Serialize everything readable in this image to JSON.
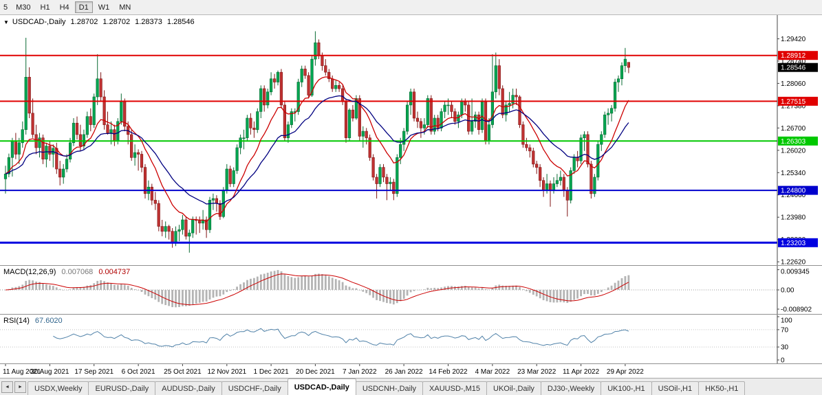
{
  "toolbar": {
    "timeframes": [
      "5",
      "M30",
      "H1",
      "H4",
      "D1",
      "W1",
      "MN"
    ],
    "active": "D1"
  },
  "chart": {
    "dropdown_icon": "▼",
    "symbol_label": "USDCAD-,Daily",
    "ohlc": {
      "open": "1.28702",
      "high": "1.28702",
      "low": "1.28373",
      "close": "1.28546"
    }
  },
  "macd": {
    "label": "MACD(12,26,9)",
    "main_value": "0.007068",
    "signal_value": "0.004737"
  },
  "rsi": {
    "label": "RSI(14)",
    "value": "67.6020"
  },
  "tab_nav": {
    "left": "◄",
    "right": "►"
  },
  "tabs": {
    "active": "USDCAD-,Daily",
    "items": [
      "USDX,Weekly",
      "EURUSD-,Daily",
      "AUDUSD-,Daily",
      "USDCHF-,Daily",
      "USDCAD-,Daily",
      "USDCNH-,Daily",
      "XAUUSD-,M15",
      "UKOil-,Daily",
      "DJ30-,Weekly",
      "UK100-,H1",
      "USOil-,H1",
      "HK50-,H1"
    ]
  },
  "chart_data": {
    "type": "candlestick",
    "symbol": "USDCAD-",
    "timeframe": "Daily",
    "x_labels": [
      "11 Aug 2021",
      "30 Aug 2021",
      "17 Sep 2021",
      "6 Oct 2021",
      "25 Oct 2021",
      "12 Nov 2021",
      "1 Dec 2021",
      "20 Dec 2021",
      "7 Jan 2022",
      "26 Jan 2022",
      "14 Feb 2022",
      "4 Mar 2022",
      "23 Mar 2022",
      "11 Apr 2022",
      "29 Apr 2022"
    ],
    "x_label_every": 13,
    "price_axis": {
      "min": 1.2256,
      "max": 1.301,
      "ticks": [
        1.2942,
        1.2874,
        1.2806,
        1.2738,
        1.267,
        1.2602,
        1.2534,
        1.2466,
        1.2398,
        1.233,
        1.2262
      ]
    },
    "levels": [
      {
        "price": 1.28912,
        "label": "1.28912",
        "color": "#e00000",
        "width": 2
      },
      {
        "price": 1.27515,
        "label": "1.27515",
        "color": "#e00000",
        "width": 2
      },
      {
        "price": 1.26303,
        "label": "1.26303",
        "color": "#00c800",
        "width": 2
      },
      {
        "price": 1.248,
        "label": "1.24800",
        "color": "#0000cd",
        "width": 2
      },
      {
        "price": 1.23203,
        "label": "1.23203",
        "color": "#0000e0",
        "width": 3
      }
    ],
    "current_price": {
      "value": 1.28546,
      "label": "1.28546",
      "color": "#000000"
    },
    "moving_averages": [
      {
        "period": 12,
        "color": "#cc0000",
        "width": 1.3
      },
      {
        "period": 26,
        "color": "#000080",
        "width": 1.3
      }
    ],
    "macd_panel": {
      "params": [
        12,
        26,
        9
      ],
      "range_max": 0.0105,
      "label_ticks": [
        {
          "label": "0.009345",
          "value": 0.009345
        },
        {
          "label": "0.00",
          "value": 0
        },
        {
          "label": "-0.008902",
          "value": -0.008902
        }
      ]
    },
    "rsi_panel": {
      "period": 14,
      "guide_levels": [
        70,
        30
      ],
      "ticks": [
        {
          "label": "100",
          "value": 100
        },
        {
          "label": "70",
          "value": 70
        },
        {
          "label": "30",
          "value": 30
        },
        {
          "label": "0",
          "value": 0
        }
      ]
    },
    "colors": {
      "bull": "#00a651",
      "bull_border": "#0a6b33",
      "bear": "#c03232",
      "bear_border": "#801414",
      "hist": "#b4b4b4",
      "signal": "#cc0000",
      "rsi": "#4f81a8"
    },
    "candles": [
      [
        1.2515,
        1.2555,
        1.247,
        1.253
      ],
      [
        1.253,
        1.2592,
        1.252,
        1.258
      ],
      [
        1.258,
        1.264,
        1.2522,
        1.263
      ],
      [
        1.263,
        1.2655,
        1.2575,
        1.259
      ],
      [
        1.259,
        1.264,
        1.256,
        1.2625
      ],
      [
        1.2625,
        1.269,
        1.261,
        1.2665
      ],
      [
        1.2665,
        1.2945,
        1.265,
        1.2825
      ],
      [
        1.2825,
        1.2855,
        1.27,
        1.2715
      ],
      [
        1.2715,
        1.276,
        1.264,
        1.265
      ],
      [
        1.265,
        1.268,
        1.259,
        1.261
      ],
      [
        1.261,
        1.2655,
        1.258,
        1.264
      ],
      [
        1.264,
        1.265,
        1.256,
        1.2575
      ],
      [
        1.2575,
        1.2625,
        1.255,
        1.2615
      ],
      [
        1.2615,
        1.263,
        1.257,
        1.259
      ],
      [
        1.259,
        1.262,
        1.255,
        1.2608
      ],
      [
        1.2608,
        1.2625,
        1.253,
        1.2545
      ],
      [
        1.2545,
        1.257,
        1.2495,
        1.252
      ],
      [
        1.252,
        1.256,
        1.25,
        1.2545
      ],
      [
        1.2545,
        1.259,
        1.2535,
        1.2575
      ],
      [
        1.2575,
        1.264,
        1.2565,
        1.2625
      ],
      [
        1.2625,
        1.27,
        1.2615,
        1.2685
      ],
      [
        1.2685,
        1.2705,
        1.2635,
        1.265
      ],
      [
        1.265,
        1.268,
        1.26,
        1.2615
      ],
      [
        1.2615,
        1.2665,
        1.2605,
        1.265
      ],
      [
        1.265,
        1.272,
        1.264,
        1.2705
      ],
      [
        1.2705,
        1.273,
        1.266,
        1.268
      ],
      [
        1.268,
        1.2775,
        1.267,
        1.2765
      ],
      [
        1.2765,
        1.2895,
        1.274,
        1.282
      ],
      [
        1.282,
        1.284,
        1.275,
        1.2765
      ],
      [
        1.2765,
        1.2785,
        1.2665,
        1.268
      ],
      [
        1.268,
        1.272,
        1.265,
        1.2655
      ],
      [
        1.2655,
        1.269,
        1.262,
        1.2665
      ],
      [
        1.2665,
        1.268,
        1.2615,
        1.263
      ],
      [
        1.263,
        1.27,
        1.262,
        1.269
      ],
      [
        1.269,
        1.2775,
        1.268,
        1.275
      ],
      [
        1.275,
        1.276,
        1.266,
        1.2675
      ],
      [
        1.2675,
        1.269,
        1.262,
        1.265
      ],
      [
        1.265,
        1.2665,
        1.257,
        1.258
      ],
      [
        1.258,
        1.262,
        1.2555,
        1.2595
      ],
      [
        1.2595,
        1.2605,
        1.254,
        1.259
      ],
      [
        1.259,
        1.26,
        1.2535,
        1.255
      ],
      [
        1.255,
        1.256,
        1.2455,
        1.247
      ],
      [
        1.247,
        1.251,
        1.245,
        1.249
      ],
      [
        1.249,
        1.25,
        1.2435,
        1.245
      ],
      [
        1.245,
        1.2475,
        1.242,
        1.244
      ],
      [
        1.244,
        1.245,
        1.2355,
        1.237
      ],
      [
        1.237,
        1.239,
        1.234,
        1.2355
      ],
      [
        1.2355,
        1.2385,
        1.2335,
        1.237
      ],
      [
        1.237,
        1.2375,
        1.233,
        1.2355
      ],
      [
        1.2355,
        1.2365,
        1.2305,
        1.232
      ],
      [
        1.232,
        1.237,
        1.231,
        1.2355
      ],
      [
        1.2355,
        1.2375,
        1.2325,
        1.236
      ],
      [
        1.236,
        1.2405,
        1.2345,
        1.239
      ],
      [
        1.239,
        1.24,
        1.233,
        1.234
      ],
      [
        1.234,
        1.236,
        1.229,
        1.235
      ],
      [
        1.235,
        1.24,
        1.2335,
        1.239
      ],
      [
        1.239,
        1.24,
        1.2345,
        1.2388
      ],
      [
        1.2388,
        1.24,
        1.235,
        1.238
      ],
      [
        1.238,
        1.242,
        1.236,
        1.239
      ],
      [
        1.239,
        1.24,
        1.2335,
        1.236
      ],
      [
        1.236,
        1.246,
        1.235,
        1.245
      ],
      [
        1.245,
        1.247,
        1.242,
        1.2455
      ],
      [
        1.2455,
        1.2465,
        1.2415,
        1.244
      ],
      [
        1.244,
        1.245,
        1.239,
        1.24
      ],
      [
        1.24,
        1.249,
        1.2395,
        1.248
      ],
      [
        1.248,
        1.256,
        1.247,
        1.2545
      ],
      [
        1.2545,
        1.2555,
        1.249,
        1.25
      ],
      [
        1.25,
        1.255,
        1.249,
        1.254
      ],
      [
        1.254,
        1.262,
        1.253,
        1.261
      ],
      [
        1.261,
        1.265,
        1.259,
        1.264
      ],
      [
        1.264,
        1.2665,
        1.2605,
        1.264
      ],
      [
        1.264,
        1.271,
        1.263,
        1.27
      ],
      [
        1.27,
        1.2715,
        1.265,
        1.267
      ],
      [
        1.267,
        1.269,
        1.264,
        1.2665
      ],
      [
        1.2665,
        1.273,
        1.2655,
        1.272
      ],
      [
        1.272,
        1.28,
        1.27,
        1.279
      ],
      [
        1.279,
        1.28,
        1.272,
        1.274
      ],
      [
        1.274,
        1.279,
        1.273,
        1.278
      ],
      [
        1.278,
        1.284,
        1.277,
        1.282
      ],
      [
        1.282,
        1.2835,
        1.279,
        1.281
      ],
      [
        1.281,
        1.2845,
        1.28,
        1.284
      ],
      [
        1.284,
        1.285,
        1.273,
        1.274
      ],
      [
        1.274,
        1.275,
        1.263,
        1.264
      ],
      [
        1.264,
        1.269,
        1.2625,
        1.268
      ],
      [
        1.268,
        1.273,
        1.267,
        1.272
      ],
      [
        1.272,
        1.273,
        1.269,
        1.272
      ],
      [
        1.272,
        1.282,
        1.271,
        1.281
      ],
      [
        1.281,
        1.286,
        1.2795,
        1.285
      ],
      [
        1.285,
        1.286,
        1.282,
        1.283
      ],
      [
        1.283,
        1.284,
        1.276,
        1.277
      ],
      [
        1.277,
        1.289,
        1.2765,
        1.288
      ],
      [
        1.288,
        1.2965,
        1.286,
        1.293
      ],
      [
        1.293,
        1.294,
        1.288,
        1.289
      ],
      [
        1.289,
        1.29,
        1.2845,
        1.286
      ],
      [
        1.286,
        1.288,
        1.283,
        1.284
      ],
      [
        1.284,
        1.285,
        1.281,
        1.282
      ],
      [
        1.282,
        1.283,
        1.278,
        1.279
      ],
      [
        1.279,
        1.2815,
        1.278,
        1.28
      ],
      [
        1.28,
        1.281,
        1.278,
        1.279
      ],
      [
        1.279,
        1.28,
        1.274,
        1.275
      ],
      [
        1.275,
        1.276,
        1.2625,
        1.264
      ],
      [
        1.264,
        1.273,
        1.263,
        1.2725
      ],
      [
        1.2725,
        1.274,
        1.269,
        1.27
      ],
      [
        1.27,
        1.277,
        1.2695,
        1.276
      ],
      [
        1.276,
        1.277,
        1.263,
        1.2645
      ],
      [
        1.2645,
        1.2675,
        1.261,
        1.266
      ],
      [
        1.266,
        1.267,
        1.262,
        1.264
      ],
      [
        1.264,
        1.265,
        1.257,
        1.258
      ],
      [
        1.258,
        1.259,
        1.251,
        1.252
      ],
      [
        1.252,
        1.253,
        1.2455,
        1.25
      ],
      [
        1.25,
        1.256,
        1.249,
        1.255
      ],
      [
        1.255,
        1.256,
        1.2505,
        1.252
      ],
      [
        1.252,
        1.253,
        1.245,
        1.25
      ],
      [
        1.25,
        1.252,
        1.248,
        1.2505
      ],
      [
        1.2505,
        1.2515,
        1.245,
        1.247
      ],
      [
        1.247,
        1.259,
        1.246,
        1.258
      ],
      [
        1.258,
        1.264,
        1.256,
        1.262
      ],
      [
        1.262,
        1.267,
        1.26,
        1.266
      ],
      [
        1.266,
        1.275,
        1.265,
        1.274
      ],
      [
        1.274,
        1.279,
        1.271,
        1.278
      ],
      [
        1.278,
        1.279,
        1.269,
        1.27
      ],
      [
        1.27,
        1.272,
        1.267,
        1.269
      ],
      [
        1.269,
        1.27,
        1.264,
        1.267
      ],
      [
        1.267,
        1.27,
        1.265,
        1.268
      ],
      [
        1.268,
        1.277,
        1.267,
        1.276
      ],
      [
        1.276,
        1.277,
        1.265,
        1.266
      ],
      [
        1.266,
        1.271,
        1.265,
        1.27
      ],
      [
        1.27,
        1.271,
        1.266,
        1.267
      ],
      [
        1.267,
        1.273,
        1.266,
        1.272
      ],
      [
        1.272,
        1.275,
        1.27,
        1.274
      ],
      [
        1.274,
        1.276,
        1.271,
        1.274
      ],
      [
        1.274,
        1.275,
        1.27,
        1.272
      ],
      [
        1.272,
        1.273,
        1.268,
        1.269
      ],
      [
        1.269,
        1.272,
        1.267,
        1.271
      ],
      [
        1.271,
        1.276,
        1.27,
        1.275
      ],
      [
        1.275,
        1.276,
        1.272,
        1.274
      ],
      [
        1.274,
        1.275,
        1.265,
        1.266
      ],
      [
        1.266,
        1.276,
        1.265,
        1.269
      ],
      [
        1.269,
        1.272,
        1.267,
        1.271
      ],
      [
        1.271,
        1.272,
        1.265,
        1.2665
      ],
      [
        1.2665,
        1.276,
        1.2655,
        1.275
      ],
      [
        1.275,
        1.276,
        1.262,
        1.263
      ],
      [
        1.263,
        1.27,
        1.262,
        1.268
      ],
      [
        1.268,
        1.2895,
        1.267,
        1.278
      ],
      [
        1.278,
        1.29,
        1.276,
        1.286
      ],
      [
        1.286,
        1.288,
        1.277,
        1.279
      ],
      [
        1.279,
        1.28,
        1.27,
        1.271
      ],
      [
        1.271,
        1.275,
        1.269,
        1.274
      ],
      [
        1.274,
        1.278,
        1.272,
        1.2745
      ],
      [
        1.2745,
        1.279,
        1.273,
        1.277
      ],
      [
        1.277,
        1.279,
        1.274,
        1.2765
      ],
      [
        1.2765,
        1.277,
        1.267,
        1.268
      ],
      [
        1.268,
        1.269,
        1.261,
        1.262
      ],
      [
        1.262,
        1.264,
        1.26,
        1.261
      ],
      [
        1.261,
        1.262,
        1.258,
        1.26
      ],
      [
        1.26,
        1.261,
        1.255,
        1.256
      ],
      [
        1.256,
        1.257,
        1.253,
        1.255
      ],
      [
        1.255,
        1.256,
        1.249,
        1.251
      ],
      [
        1.251,
        1.252,
        1.246,
        1.248
      ],
      [
        1.248,
        1.253,
        1.247,
        1.25
      ],
      [
        1.25,
        1.251,
        1.243,
        1.248
      ],
      [
        1.248,
        1.252,
        1.247,
        1.25
      ],
      [
        1.25,
        1.253,
        1.249,
        1.251
      ],
      [
        1.251,
        1.254,
        1.2495,
        1.252
      ],
      [
        1.252,
        1.253,
        1.246,
        1.248
      ],
      [
        1.248,
        1.249,
        1.24,
        1.245
      ],
      [
        1.245,
        1.255,
        1.244,
        1.254
      ],
      [
        1.254,
        1.259,
        1.253,
        1.258
      ],
      [
        1.258,
        1.26,
        1.255,
        1.257
      ],
      [
        1.257,
        1.265,
        1.256,
        1.264
      ],
      [
        1.264,
        1.266,
        1.26,
        1.265
      ],
      [
        1.265,
        1.266,
        1.255,
        1.256
      ],
      [
        1.256,
        1.257,
        1.2455,
        1.247
      ],
      [
        1.247,
        1.253,
        1.246,
        1.252
      ],
      [
        1.252,
        1.263,
        1.251,
        1.262
      ],
      [
        1.262,
        1.266,
        1.26,
        1.265
      ],
      [
        1.265,
        1.272,
        1.264,
        1.271
      ],
      [
        1.271,
        1.273,
        1.268,
        1.2715
      ],
      [
        1.2715,
        1.274,
        1.269,
        1.273
      ],
      [
        1.273,
        1.282,
        1.272,
        1.281
      ],
      [
        1.281,
        1.283,
        1.278,
        1.282
      ],
      [
        1.282,
        1.287,
        1.28,
        1.286
      ],
      [
        1.286,
        1.2914,
        1.284,
        1.288
      ],
      [
        1.28702,
        1.28702,
        1.28373,
        1.28546
      ]
    ]
  }
}
